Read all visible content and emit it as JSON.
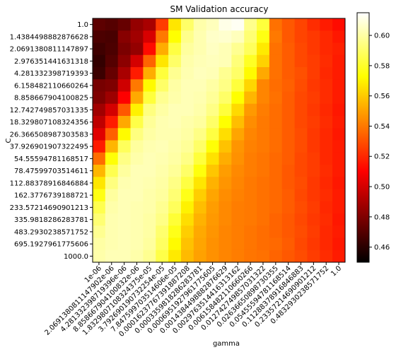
{
  "chart_data": {
    "type": "heatmap",
    "title": "SM Validation accuracy",
    "xlabel": "gamma",
    "ylabel": "C",
    "colormap": "hot",
    "x_tick_labels": [
      "1e-06",
      "2.0691380811147902e-06",
      "4.281332398719396e-06",
      "8.858667904100832e-06",
      "1.8329807108324375e-05",
      "3.792690190732254e-05",
      "7.847599703514606e-05",
      "0.00016237767391887208",
      "0.0003359818286283781",
      "0.0006951927961775605",
      "0.0014384498882876629",
      "0.0029763514416313162",
      "0.006158482110660266",
      "0.012742749857031322",
      "0.02636650898730355",
      "0.05455594781168514",
      "0.11288378916846883",
      "0.23357214690901212",
      "0.4832930238571752",
      "1.0"
    ],
    "y_tick_labels": [
      "1.0",
      "1.4384498882876628",
      "2.0691380811147897",
      "2.976351441631318",
      "4.281332398719393",
      "6.158482110660264",
      "8.858667904100825",
      "12.742749857031335",
      "18.329807108324356",
      "26.366508987303583",
      "37.926901907322495",
      "54.55594781168517",
      "78.47599703514611",
      "112.88378916846884",
      "162.3776739188721",
      "233.57214690901213",
      "335.9818286283781",
      "483.2930238571752",
      "695.1927961775606",
      "1000.0"
    ],
    "colorbar": {
      "ticks": [
        0.46,
        0.48,
        0.5,
        0.52,
        0.54,
        0.56,
        0.58,
        0.6
      ],
      "vmin": 0.45,
      "vmax": 0.615
    },
    "values": [
      [
        0.472,
        0.47,
        0.474,
        0.485,
        0.49,
        0.525,
        0.567,
        0.59,
        0.601,
        0.604,
        0.611,
        0.613,
        0.596,
        0.583,
        0.538,
        0.532,
        0.527,
        0.521,
        0.517,
        0.513
      ],
      [
        0.468,
        0.467,
        0.482,
        0.488,
        0.501,
        0.54,
        0.573,
        0.596,
        0.602,
        0.606,
        0.607,
        0.604,
        0.592,
        0.576,
        0.54,
        0.532,
        0.527,
        0.524,
        0.52,
        0.516
      ],
      [
        0.465,
        0.468,
        0.479,
        0.485,
        0.513,
        0.553,
        0.584,
        0.599,
        0.602,
        0.605,
        0.603,
        0.597,
        0.588,
        0.568,
        0.538,
        0.533,
        0.528,
        0.524,
        0.52,
        0.518
      ],
      [
        0.462,
        0.47,
        0.483,
        0.5,
        0.535,
        0.567,
        0.59,
        0.601,
        0.603,
        0.604,
        0.603,
        0.593,
        0.579,
        0.562,
        0.538,
        0.533,
        0.528,
        0.525,
        0.521,
        0.517
      ],
      [
        0.464,
        0.474,
        0.49,
        0.517,
        0.553,
        0.583,
        0.597,
        0.602,
        0.604,
        0.603,
        0.597,
        0.59,
        0.572,
        0.552,
        0.538,
        0.533,
        0.53,
        0.525,
        0.52,
        0.517
      ],
      [
        0.478,
        0.48,
        0.499,
        0.54,
        0.572,
        0.59,
        0.6,
        0.603,
        0.603,
        0.6,
        0.595,
        0.583,
        0.563,
        0.543,
        0.537,
        0.534,
        0.529,
        0.524,
        0.521,
        0.517
      ],
      [
        0.48,
        0.487,
        0.51,
        0.552,
        0.583,
        0.597,
        0.601,
        0.603,
        0.602,
        0.598,
        0.59,
        0.573,
        0.555,
        0.543,
        0.538,
        0.533,
        0.528,
        0.525,
        0.521,
        0.517
      ],
      [
        0.488,
        0.5,
        0.532,
        0.57,
        0.594,
        0.6,
        0.603,
        0.603,
        0.601,
        0.595,
        0.583,
        0.564,
        0.548,
        0.541,
        0.537,
        0.533,
        0.528,
        0.524,
        0.52,
        0.516
      ],
      [
        0.495,
        0.517,
        0.552,
        0.585,
        0.598,
        0.602,
        0.603,
        0.601,
        0.599,
        0.59,
        0.573,
        0.557,
        0.545,
        0.54,
        0.537,
        0.533,
        0.528,
        0.525,
        0.521,
        0.517
      ],
      [
        0.503,
        0.534,
        0.572,
        0.594,
        0.6,
        0.602,
        0.602,
        0.6,
        0.595,
        0.584,
        0.565,
        0.551,
        0.543,
        0.54,
        0.537,
        0.533,
        0.529,
        0.524,
        0.52,
        0.516
      ],
      [
        0.517,
        0.555,
        0.588,
        0.599,
        0.602,
        0.603,
        0.601,
        0.598,
        0.59,
        0.574,
        0.558,
        0.547,
        0.542,
        0.54,
        0.537,
        0.533,
        0.529,
        0.524,
        0.52,
        0.517
      ],
      [
        0.537,
        0.574,
        0.595,
        0.601,
        0.603,
        0.602,
        0.6,
        0.595,
        0.583,
        0.566,
        0.553,
        0.546,
        0.541,
        0.539,
        0.536,
        0.533,
        0.528,
        0.525,
        0.52,
        0.517
      ],
      [
        0.555,
        0.586,
        0.599,
        0.603,
        0.603,
        0.601,
        0.598,
        0.59,
        0.575,
        0.559,
        0.549,
        0.544,
        0.541,
        0.539,
        0.536,
        0.532,
        0.528,
        0.525,
        0.521,
        0.517
      ],
      [
        0.567,
        0.594,
        0.602,
        0.603,
        0.602,
        0.6,
        0.595,
        0.584,
        0.567,
        0.554,
        0.547,
        0.543,
        0.54,
        0.538,
        0.536,
        0.532,
        0.529,
        0.524,
        0.52,
        0.516
      ],
      [
        0.576,
        0.599,
        0.603,
        0.603,
        0.601,
        0.599,
        0.592,
        0.577,
        0.561,
        0.551,
        0.545,
        0.542,
        0.54,
        0.538,
        0.536,
        0.533,
        0.528,
        0.524,
        0.521,
        0.517
      ],
      [
        0.586,
        0.601,
        0.603,
        0.602,
        0.601,
        0.597,
        0.588,
        0.57,
        0.557,
        0.549,
        0.544,
        0.541,
        0.54,
        0.538,
        0.536,
        0.533,
        0.529,
        0.525,
        0.52,
        0.517
      ],
      [
        0.592,
        0.602,
        0.603,
        0.602,
        0.6,
        0.595,
        0.582,
        0.565,
        0.554,
        0.548,
        0.544,
        0.541,
        0.54,
        0.538,
        0.535,
        0.532,
        0.528,
        0.524,
        0.521,
        0.516
      ],
      [
        0.597,
        0.602,
        0.603,
        0.602,
        0.6,
        0.591,
        0.577,
        0.561,
        0.552,
        0.547,
        0.543,
        0.541,
        0.539,
        0.537,
        0.535,
        0.532,
        0.529,
        0.525,
        0.52,
        0.517
      ],
      [
        0.6,
        0.602,
        0.603,
        0.602,
        0.599,
        0.589,
        0.572,
        0.558,
        0.551,
        0.546,
        0.543,
        0.541,
        0.539,
        0.537,
        0.536,
        0.533,
        0.528,
        0.524,
        0.52,
        0.516
      ],
      [
        0.601,
        0.603,
        0.603,
        0.601,
        0.597,
        0.585,
        0.568,
        0.556,
        0.55,
        0.546,
        0.543,
        0.541,
        0.539,
        0.538,
        0.535,
        0.532,
        0.529,
        0.525,
        0.521,
        0.517
      ]
    ]
  }
}
